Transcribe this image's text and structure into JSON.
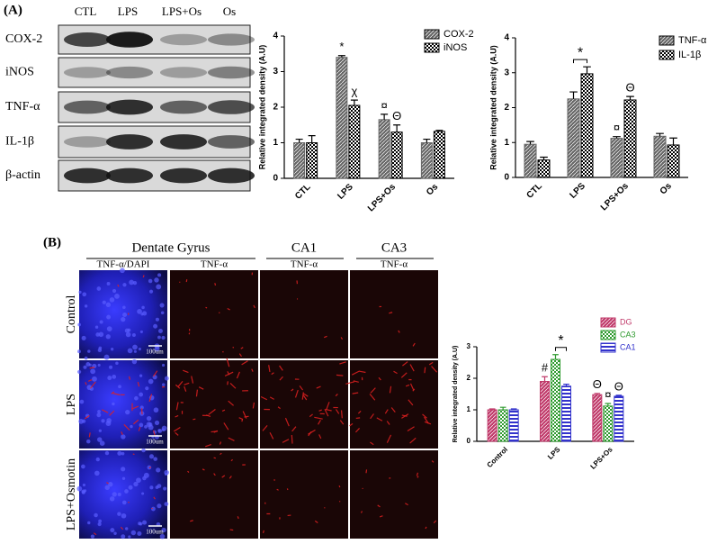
{
  "panel_labels": [
    "(A)",
    "(B)"
  ],
  "blot": {
    "lanes": [
      "CTL",
      "LPS",
      "LPS+Os",
      "Os"
    ],
    "proteins": [
      "COX-2",
      "iNOS",
      "TNF-α",
      "IL-1β",
      "β-actin"
    ]
  },
  "histology": {
    "regions": [
      "Dentate  Gyrus",
      "CA1",
      "CA3"
    ],
    "stains": [
      "TNF-α/DAPI",
      "TNF-α",
      "TNF-α",
      "TNF-α"
    ],
    "conditions": [
      "Control",
      "LPS",
      "LPS+Osmotin"
    ],
    "scale_bar": "100um"
  },
  "chart_data": [
    {
      "type": "bar",
      "ylabel": "Relative integrated density (A.U)",
      "categories": [
        "CTL",
        "LPS",
        "LPS+Os",
        "Os"
      ],
      "series": [
        {
          "name": "COX-2",
          "color": "#666666",
          "values": [
            1.0,
            3.4,
            1.65,
            1.0
          ],
          "errors": [
            0.1,
            0.05,
            0.15,
            0.1
          ]
        },
        {
          "name": "iNOS",
          "color": "#000000",
          "values": [
            1.0,
            2.05,
            1.3,
            1.32
          ],
          "errors": [
            0.2,
            0.15,
            0.2,
            0.03
          ]
        }
      ],
      "ylim": [
        0,
        4
      ],
      "yticks": [
        0,
        1,
        2,
        3,
        4
      ],
      "annotations": [
        "*",
        "χ",
        "¤",
        "Θ"
      ],
      "legend": "upper right"
    },
    {
      "type": "bar",
      "ylabel": "Relative integrated density (A.U)",
      "categories": [
        "CTL",
        "LPS",
        "LPS+Os",
        "Os"
      ],
      "series": [
        {
          "name": "TNF-α",
          "color": "#666666",
          "values": [
            0.95,
            2.25,
            1.12,
            1.18
          ],
          "errors": [
            0.08,
            0.2,
            0.05,
            0.08
          ]
        },
        {
          "name": "IL-1β",
          "color": "#000000",
          "values": [
            0.5,
            2.97,
            2.22,
            0.93
          ],
          "errors": [
            0.08,
            0.2,
            0.1,
            0.2
          ]
        }
      ],
      "ylim": [
        0,
        4
      ],
      "yticks": [
        0,
        1,
        2,
        3,
        4
      ],
      "annotations": [
        "*",
        "¤",
        "Θ"
      ],
      "legend": "upper right"
    },
    {
      "type": "bar",
      "ylabel": "Relative integrated density (A.U)",
      "categories": [
        "Control",
        "LPS",
        "LPS+Os"
      ],
      "series": [
        {
          "name": "DG",
          "color": "#c03a6a",
          "values": [
            1.0,
            1.9,
            1.48
          ],
          "errors": [
            0.03,
            0.15,
            0.04
          ]
        },
        {
          "name": "CA3",
          "color": "#2e9a2e",
          "values": [
            1.0,
            2.6,
            1.12
          ],
          "errors": [
            0.08,
            0.15,
            0.08
          ]
        },
        {
          "name": "CA1",
          "color": "#3333cc",
          "values": [
            1.0,
            1.75,
            1.43
          ],
          "errors": [
            0.03,
            0.06,
            0.03
          ]
        }
      ],
      "ylim": [
        0,
        3
      ],
      "yticks": [
        0,
        1,
        2,
        3
      ],
      "annotations": [
        "#",
        "*",
        "Θ",
        "¤",
        "Θ"
      ],
      "legend": "upper right"
    }
  ]
}
